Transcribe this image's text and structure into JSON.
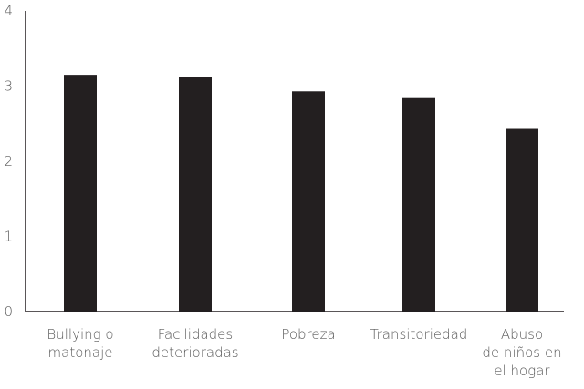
{
  "chart_data": {
    "type": "bar",
    "categories": [
      [
        "Bullying o",
        "matonaje"
      ],
      [
        "Facilidades",
        "deterioradas"
      ],
      [
        "Pobreza"
      ],
      [
        "Transitoriedad"
      ],
      [
        "Abuso",
        "de niños en",
        "el hogar"
      ]
    ],
    "values": [
      3.15,
      3.12,
      2.93,
      2.84,
      2.43
    ],
    "y_ticks": [
      "0",
      "1",
      "2",
      "3",
      "4"
    ],
    "ylim": [
      0,
      4
    ],
    "bar_color": "#231f20",
    "axis_color": "#231f20",
    "grid": false,
    "title": "",
    "xlabel": "",
    "ylabel": ""
  }
}
